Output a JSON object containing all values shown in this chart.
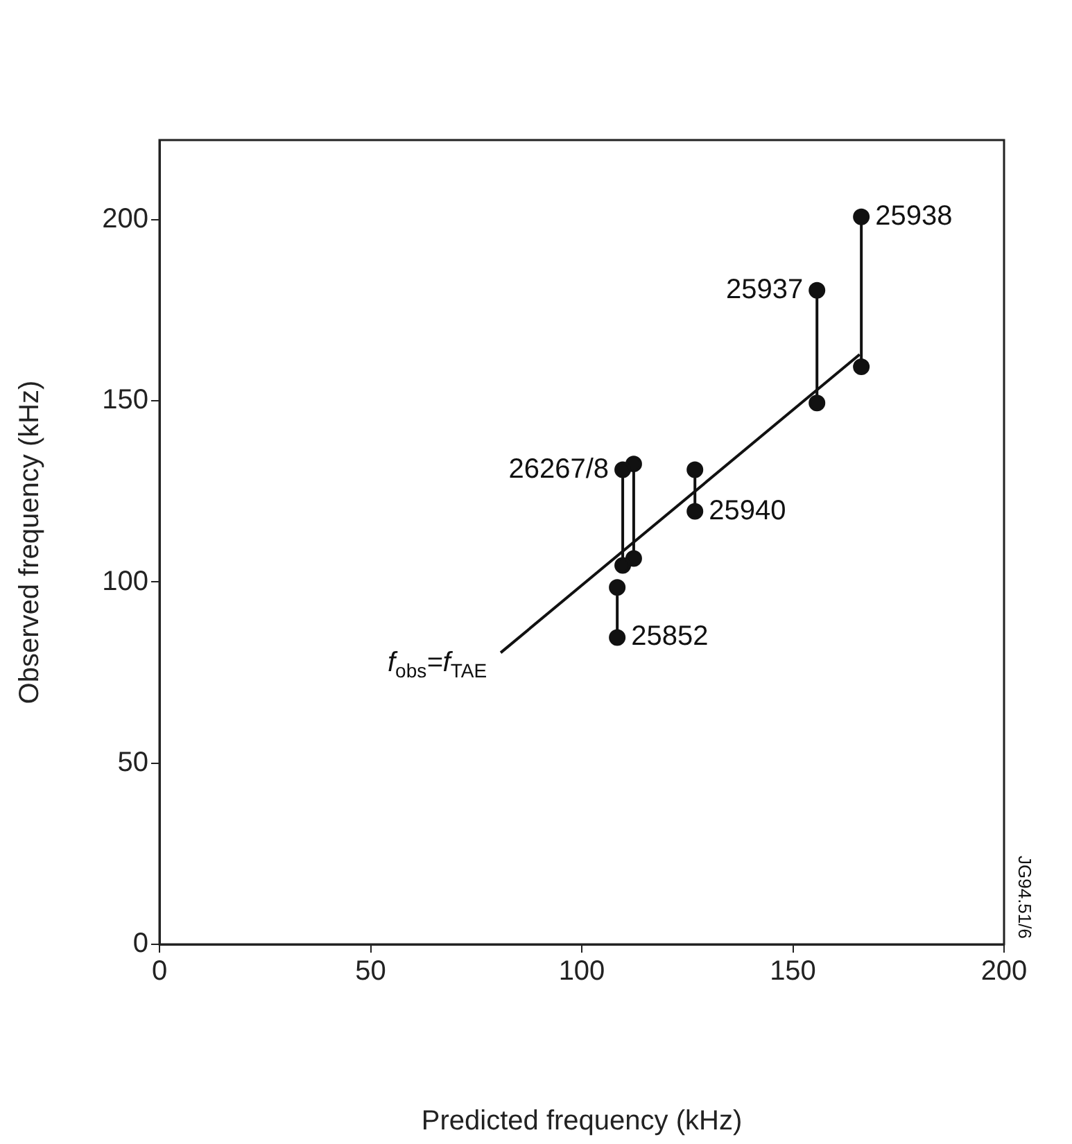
{
  "chart_data": {
    "type": "line",
    "xlabel": "Predicted frequency (kHz)",
    "ylabel": "Observed frequency (kHz)",
    "xlim": [
      0,
      200
    ],
    "xticks": [
      0,
      50,
      100,
      150,
      200
    ],
    "ylim": [
      0,
      222
    ],
    "yticks": [
      0,
      50,
      100,
      150,
      200
    ],
    "grid": false,
    "legend": false,
    "marker": "circle",
    "series": [
      {
        "color": "#111111",
        "x": [
          80.8,
          165.8
        ],
        "values": [
          80.5,
          162.8
        ],
        "marker": "none"
      },
      {
        "color": "#111111",
        "x": [
          108.4,
          108.4
        ],
        "values": [
          98.5,
          84.7
        ]
      },
      {
        "color": "#111111",
        "x": [
          109.7,
          109.7
        ],
        "values": [
          131,
          104.6
        ]
      },
      {
        "color": "#111111",
        "x": [
          112.3,
          112.3
        ],
        "values": [
          132.6,
          106.5
        ]
      },
      {
        "color": "#111111",
        "x": [
          126.8,
          126.8
        ],
        "values": [
          131,
          119.5
        ]
      },
      {
        "color": "#111111",
        "x": [
          155.7,
          155.7
        ],
        "values": [
          180.5,
          149.4
        ]
      },
      {
        "color": "#111111",
        "x": [
          166.2,
          166.2
        ],
        "values": [
          200.8,
          159.4
        ]
      }
    ],
    "annotations": [
      {
        "text": "f$_{obs}$=f$_{TAE}$",
        "x": 80.8,
        "y": 80.5
      },
      {
        "text": "25852",
        "x": 108.4,
        "y": 84.7
      },
      {
        "text": "26267/8",
        "x": 109.7,
        "y": 131
      },
      {
        "text": "25940",
        "x": 126.8,
        "y": 119.5
      },
      {
        "text": "25937",
        "x": 155.7,
        "y": 180.5
      },
      {
        "text": "25938",
        "x": 166.2,
        "y": 200.8
      },
      "JG94.51/6"
    ]
  }
}
